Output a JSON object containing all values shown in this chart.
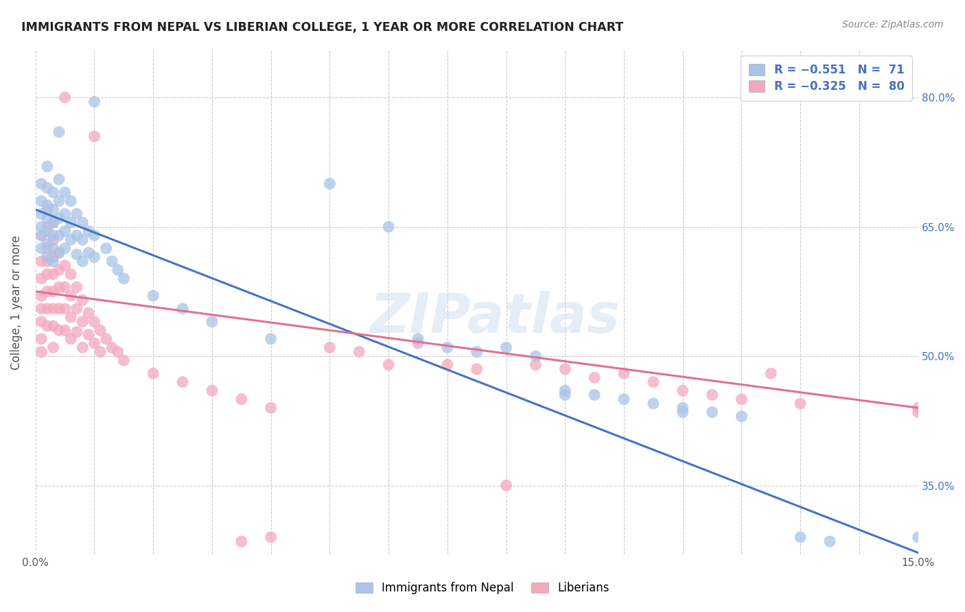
{
  "title": "IMMIGRANTS FROM NEPAL VS LIBERIAN COLLEGE, 1 YEAR OR MORE CORRELATION CHART",
  "source": "Source: ZipAtlas.com",
  "ylabel_label": "College, 1 year or more",
  "watermark": "ZIPatlas",
  "nepal_color": "#a8c4e8",
  "liberia_color": "#f4a8bc",
  "nepal_line_color": "#4472c4",
  "liberia_line_color": "#e07090",
  "background_color": "#ffffff",
  "grid_color": "#cccccc",
  "title_color": "#222222",
  "axis_label_color": "#4472c4",
  "source_color": "#888888",
  "xlim": [
    0.0,
    0.15
  ],
  "ylim": [
    0.27,
    0.855
  ],
  "ytick_vals": [
    0.35,
    0.5,
    0.65,
    0.8
  ],
  "ytick_labels": [
    "35.0%",
    "50.0%",
    "65.0%",
    "80.0%"
  ],
  "nepal_line": [
    [
      0.0,
      0.67
    ],
    [
      0.15,
      0.272
    ]
  ],
  "liberia_line": [
    [
      0.0,
      0.575
    ],
    [
      0.15,
      0.44
    ]
  ],
  "nepal_scatter": [
    [
      0.001,
      0.7
    ],
    [
      0.001,
      0.68
    ],
    [
      0.001,
      0.665
    ],
    [
      0.001,
      0.65
    ],
    [
      0.001,
      0.64
    ],
    [
      0.001,
      0.625
    ],
    [
      0.002,
      0.72
    ],
    [
      0.002,
      0.695
    ],
    [
      0.002,
      0.675
    ],
    [
      0.002,
      0.66
    ],
    [
      0.002,
      0.645
    ],
    [
      0.002,
      0.63
    ],
    [
      0.002,
      0.615
    ],
    [
      0.003,
      0.69
    ],
    [
      0.003,
      0.67
    ],
    [
      0.003,
      0.655
    ],
    [
      0.003,
      0.64
    ],
    [
      0.003,
      0.625
    ],
    [
      0.003,
      0.61
    ],
    [
      0.004,
      0.76
    ],
    [
      0.004,
      0.705
    ],
    [
      0.004,
      0.68
    ],
    [
      0.004,
      0.66
    ],
    [
      0.004,
      0.64
    ],
    [
      0.004,
      0.62
    ],
    [
      0.005,
      0.69
    ],
    [
      0.005,
      0.665
    ],
    [
      0.005,
      0.645
    ],
    [
      0.005,
      0.625
    ],
    [
      0.006,
      0.68
    ],
    [
      0.006,
      0.655
    ],
    [
      0.006,
      0.635
    ],
    [
      0.007,
      0.665
    ],
    [
      0.007,
      0.64
    ],
    [
      0.007,
      0.618
    ],
    [
      0.008,
      0.655
    ],
    [
      0.008,
      0.635
    ],
    [
      0.008,
      0.61
    ],
    [
      0.009,
      0.645
    ],
    [
      0.009,
      0.62
    ],
    [
      0.01,
      0.795
    ],
    [
      0.01,
      0.64
    ],
    [
      0.01,
      0.615
    ],
    [
      0.012,
      0.625
    ],
    [
      0.013,
      0.61
    ],
    [
      0.014,
      0.6
    ],
    [
      0.015,
      0.59
    ],
    [
      0.02,
      0.57
    ],
    [
      0.025,
      0.555
    ],
    [
      0.03,
      0.54
    ],
    [
      0.04,
      0.52
    ],
    [
      0.05,
      0.7
    ],
    [
      0.06,
      0.65
    ],
    [
      0.065,
      0.52
    ],
    [
      0.07,
      0.51
    ],
    [
      0.075,
      0.505
    ],
    [
      0.08,
      0.51
    ],
    [
      0.085,
      0.5
    ],
    [
      0.09,
      0.46
    ],
    [
      0.09,
      0.455
    ],
    [
      0.095,
      0.455
    ],
    [
      0.1,
      0.45
    ],
    [
      0.105,
      0.445
    ],
    [
      0.11,
      0.44
    ],
    [
      0.11,
      0.435
    ],
    [
      0.115,
      0.435
    ],
    [
      0.12,
      0.43
    ],
    [
      0.13,
      0.29
    ],
    [
      0.135,
      0.285
    ],
    [
      0.15,
      0.29
    ]
  ],
  "liberia_scatter": [
    [
      0.001,
      0.64
    ],
    [
      0.001,
      0.61
    ],
    [
      0.001,
      0.59
    ],
    [
      0.001,
      0.57
    ],
    [
      0.001,
      0.555
    ],
    [
      0.001,
      0.54
    ],
    [
      0.001,
      0.52
    ],
    [
      0.001,
      0.505
    ],
    [
      0.002,
      0.67
    ],
    [
      0.002,
      0.65
    ],
    [
      0.002,
      0.625
    ],
    [
      0.002,
      0.61
    ],
    [
      0.002,
      0.595
    ],
    [
      0.002,
      0.575
    ],
    [
      0.002,
      0.555
    ],
    [
      0.002,
      0.535
    ],
    [
      0.003,
      0.655
    ],
    [
      0.003,
      0.635
    ],
    [
      0.003,
      0.615
    ],
    [
      0.003,
      0.595
    ],
    [
      0.003,
      0.575
    ],
    [
      0.003,
      0.555
    ],
    [
      0.003,
      0.535
    ],
    [
      0.003,
      0.51
    ],
    [
      0.004,
      0.62
    ],
    [
      0.004,
      0.6
    ],
    [
      0.004,
      0.58
    ],
    [
      0.004,
      0.555
    ],
    [
      0.004,
      0.53
    ],
    [
      0.005,
      0.8
    ],
    [
      0.005,
      0.605
    ],
    [
      0.005,
      0.58
    ],
    [
      0.005,
      0.555
    ],
    [
      0.005,
      0.53
    ],
    [
      0.006,
      0.595
    ],
    [
      0.006,
      0.57
    ],
    [
      0.006,
      0.545
    ],
    [
      0.006,
      0.52
    ],
    [
      0.007,
      0.58
    ],
    [
      0.007,
      0.555
    ],
    [
      0.007,
      0.528
    ],
    [
      0.008,
      0.565
    ],
    [
      0.008,
      0.54
    ],
    [
      0.008,
      0.51
    ],
    [
      0.009,
      0.55
    ],
    [
      0.009,
      0.525
    ],
    [
      0.01,
      0.755
    ],
    [
      0.01,
      0.54
    ],
    [
      0.01,
      0.515
    ],
    [
      0.011,
      0.53
    ],
    [
      0.011,
      0.505
    ],
    [
      0.012,
      0.52
    ],
    [
      0.013,
      0.51
    ],
    [
      0.014,
      0.505
    ],
    [
      0.015,
      0.495
    ],
    [
      0.02,
      0.48
    ],
    [
      0.025,
      0.47
    ],
    [
      0.03,
      0.46
    ],
    [
      0.035,
      0.45
    ],
    [
      0.04,
      0.44
    ],
    [
      0.05,
      0.51
    ],
    [
      0.055,
      0.505
    ],
    [
      0.06,
      0.49
    ],
    [
      0.065,
      0.515
    ],
    [
      0.07,
      0.49
    ],
    [
      0.075,
      0.485
    ],
    [
      0.08,
      0.35
    ],
    [
      0.085,
      0.49
    ],
    [
      0.09,
      0.485
    ],
    [
      0.095,
      0.475
    ],
    [
      0.1,
      0.48
    ],
    [
      0.105,
      0.47
    ],
    [
      0.11,
      0.46
    ],
    [
      0.115,
      0.455
    ],
    [
      0.12,
      0.45
    ],
    [
      0.125,
      0.48
    ],
    [
      0.13,
      0.445
    ],
    [
      0.04,
      0.29
    ],
    [
      0.035,
      0.285
    ],
    [
      0.15,
      0.44
    ],
    [
      0.15,
      0.435
    ]
  ]
}
